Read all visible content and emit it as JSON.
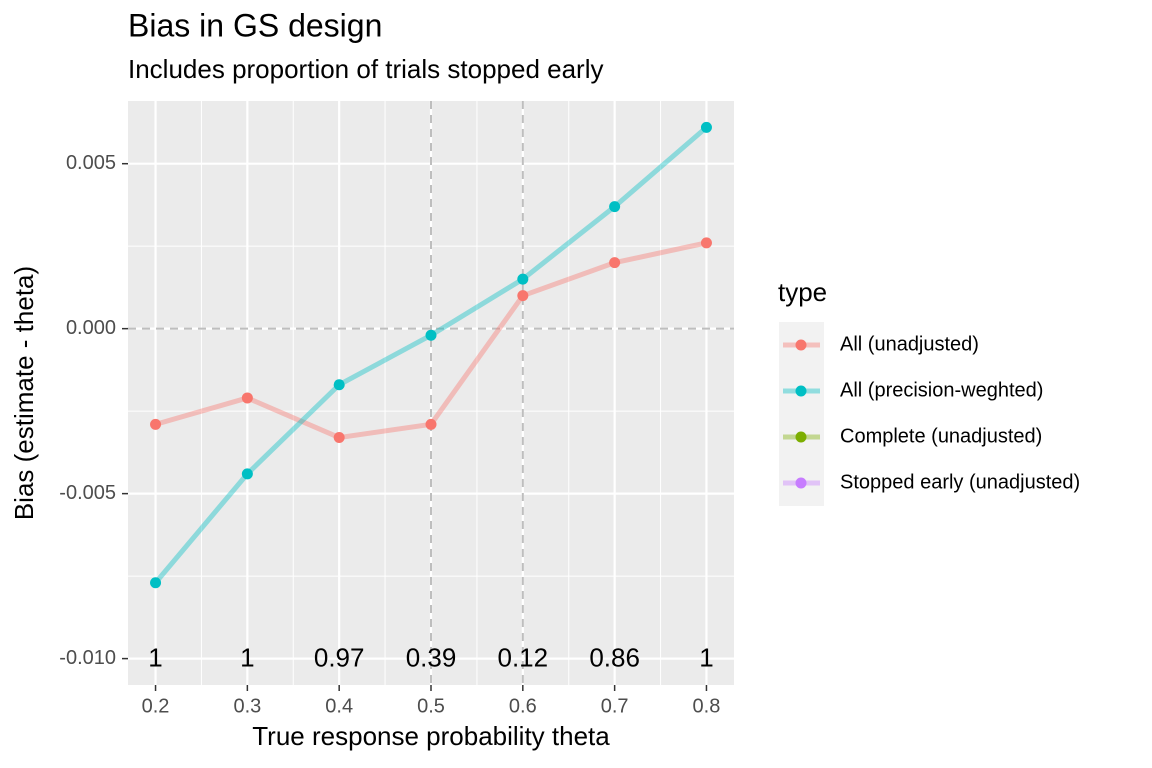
{
  "chart_data": {
    "type": "line",
    "title": "Bias in GS design",
    "subtitle": "Includes proportion of trials stopped early",
    "x_label": "True response probability theta",
    "y_label": "Bias (estimate - theta)",
    "x": [
      0.2,
      0.3,
      0.4,
      0.5,
      0.6,
      0.7,
      0.8
    ],
    "series": [
      {
        "name": "All (unadjusted)",
        "color": "#F8766D",
        "values": [
          -0.0029,
          -0.0021,
          -0.0033,
          -0.0029,
          0.001,
          0.002,
          0.0026
        ]
      },
      {
        "name": "All (precision-weghted)",
        "color": "#00BFC4",
        "values": [
          -0.0077,
          -0.0044,
          -0.0017,
          -0.0002,
          0.0015,
          0.0037,
          0.0061
        ]
      },
      {
        "name": "Complete (unadjusted)",
        "color": "#7CAE00",
        "values": [
          null,
          null,
          null,
          null,
          null,
          null,
          null
        ]
      },
      {
        "name": "Stopped early (unadjusted)",
        "color": "#C77CFF",
        "values": [
          null,
          null,
          null,
          null,
          null,
          null,
          null
        ]
      }
    ],
    "stopped_early_proportion": [
      1,
      1,
      0.97,
      0.39,
      0.12,
      0.86,
      1
    ],
    "legend_title": "type",
    "legend_position": "right",
    "xlim": [
      0.17,
      0.83
    ],
    "ylim": [
      -0.0108,
      0.0069
    ],
    "xticks": [
      0.2,
      0.3,
      0.4,
      0.5,
      0.6,
      0.7,
      0.8
    ],
    "yticks": [
      {
        "value": -0.01,
        "label": "-0.010"
      },
      -0.005,
      {
        "value": 0,
        "label": "0.000"
      },
      0.005
    ],
    "vlines": [
      0.5,
      0.6
    ],
    "hlines": [
      0
    ],
    "grid": true
  }
}
